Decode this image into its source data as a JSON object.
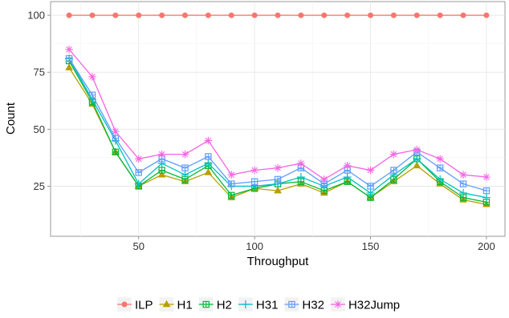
{
  "chart_data": {
    "type": "line",
    "xlabel": "Throughput",
    "ylabel": "Count",
    "xlim": [
      12,
      208
    ],
    "ylim": [
      3,
      106
    ],
    "xticks": [
      50,
      100,
      150,
      200
    ],
    "yticks": [
      25,
      50,
      75,
      100
    ],
    "grid": true,
    "legend_position": "bottom",
    "x": [
      20,
      30,
      40,
      50,
      60,
      70,
      80,
      90,
      100,
      110,
      120,
      130,
      140,
      150,
      160,
      170,
      180,
      190,
      200
    ],
    "series": [
      {
        "name": "ILP",
        "color": "#F8766D",
        "marker": "circle",
        "values": [
          100,
          100,
          100,
          100,
          100,
          100,
          100,
          100,
          100,
          100,
          100,
          100,
          100,
          100,
          100,
          100,
          100,
          100,
          100
        ]
      },
      {
        "name": "H1",
        "color": "#B79F00",
        "marker": "triangle",
        "values": [
          77,
          61,
          40,
          25,
          30,
          27,
          31,
          20,
          24,
          23,
          26,
          22,
          27,
          20,
          27,
          34,
          26,
          19,
          17
        ]
      },
      {
        "name": "H2",
        "color": "#00BA38",
        "marker": "square-cross",
        "values": [
          80,
          62,
          40,
          25,
          32,
          28,
          34,
          21,
          24,
          26,
          27,
          23,
          27,
          20,
          28,
          37,
          27,
          20,
          18
        ]
      },
      {
        "name": "H31",
        "color": "#00BFC4",
        "marker": "plus",
        "values": [
          81,
          63,
          45,
          26,
          35,
          30,
          35,
          25,
          25,
          26,
          29,
          25,
          29,
          22,
          30,
          37,
          28,
          22,
          20
        ]
      },
      {
        "name": "H32",
        "color": "#619CFF",
        "marker": "square-cross",
        "values": [
          81,
          65,
          46,
          31,
          37,
          33,
          38,
          26,
          27,
          28,
          33,
          26,
          32,
          25,
          32,
          40,
          33,
          26,
          23
        ]
      },
      {
        "name": "H32Jump",
        "color": "#F564E3",
        "marker": "asterisk",
        "values": [
          85,
          73,
          49,
          37,
          39,
          39,
          45,
          30,
          32,
          33,
          35,
          28,
          34,
          32,
          39,
          41,
          37,
          30,
          29
        ]
      }
    ]
  }
}
